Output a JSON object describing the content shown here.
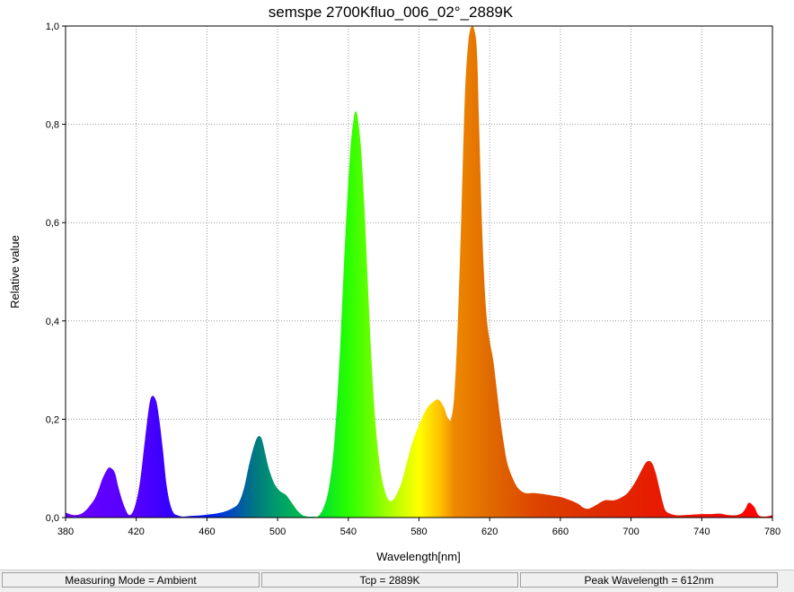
{
  "chart_data": {
    "type": "area",
    "title": "semspe 2700Kfluo_006_02°_2889K",
    "xlabel": "Wavelength[nm]",
    "ylabel": "Relative value",
    "xlim": [
      380,
      780
    ],
    "ylim": [
      0,
      1.0
    ],
    "xticks": [
      380,
      420,
      460,
      500,
      540,
      580,
      620,
      660,
      700,
      740,
      780
    ],
    "xtick_labels": [
      "380",
      "420",
      "460",
      "500",
      "540",
      "580",
      "620",
      "660",
      "700",
      "740",
      "780"
    ],
    "yticks": [
      0,
      0.2,
      0.4,
      0.6,
      0.8,
      1.0
    ],
    "ytick_labels": [
      "0,0",
      "0,2",
      "0,4",
      "0,6",
      "0,8",
      "1,0"
    ],
    "grid": true,
    "fill": "wavelength-colored spectrum",
    "series": [
      {
        "x": [
          380,
          385,
          390,
          395,
          398,
          401,
          404,
          406,
          408,
          410,
          413,
          416,
          419,
          422,
          425,
          428,
          431,
          433,
          435,
          437,
          439,
          441,
          443,
          446,
          450,
          455,
          460,
          465,
          470,
          475,
          478,
          481,
          484,
          487,
          489,
          491,
          493,
          495,
          498,
          501,
          503,
          505,
          508,
          511,
          514,
          517,
          520,
          523,
          526,
          529,
          532,
          535,
          538,
          541,
          543,
          544,
          545,
          547,
          549,
          551,
          553,
          555,
          557,
          559,
          561,
          563,
          565,
          567,
          570,
          573,
          576,
          579,
          582,
          585,
          588,
          591,
          594,
          596,
          598,
          600,
          602,
          604,
          606,
          608,
          610,
          612,
          613,
          614,
          616,
          618,
          620,
          622,
          624,
          626,
          628,
          630,
          633,
          636,
          640,
          645,
          650,
          655,
          660,
          665,
          670,
          673,
          676,
          680,
          685,
          690,
          694,
          698,
          702,
          705,
          708,
          710,
          712,
          714,
          716,
          718,
          720,
          725,
          730,
          740,
          745,
          750,
          755,
          760,
          763,
          765,
          766,
          767,
          768,
          770,
          772,
          775,
          778,
          780
        ],
        "y": [
          0.01,
          0.005,
          0.01,
          0.03,
          0.05,
          0.08,
          0.1,
          0.1,
          0.09,
          0.06,
          0.025,
          0.005,
          0.02,
          0.07,
          0.16,
          0.24,
          0.24,
          0.2,
          0.14,
          0.07,
          0.03,
          0.01,
          0.005,
          0.002,
          0.003,
          0.004,
          0.006,
          0.008,
          0.012,
          0.02,
          0.03,
          0.06,
          0.11,
          0.15,
          0.165,
          0.16,
          0.13,
          0.1,
          0.07,
          0.055,
          0.05,
          0.045,
          0.03,
          0.015,
          0.005,
          0.002,
          0.002,
          0.003,
          0.02,
          0.06,
          0.15,
          0.32,
          0.55,
          0.74,
          0.81,
          0.825,
          0.82,
          0.76,
          0.64,
          0.48,
          0.33,
          0.21,
          0.13,
          0.08,
          0.05,
          0.035,
          0.035,
          0.045,
          0.07,
          0.11,
          0.15,
          0.18,
          0.205,
          0.225,
          0.235,
          0.24,
          0.225,
          0.205,
          0.2,
          0.25,
          0.4,
          0.62,
          0.86,
          0.97,
          1.0,
          0.98,
          0.93,
          0.8,
          0.56,
          0.42,
          0.36,
          0.32,
          0.26,
          0.2,
          0.15,
          0.11,
          0.08,
          0.06,
          0.05,
          0.05,
          0.048,
          0.045,
          0.042,
          0.036,
          0.028,
          0.02,
          0.018,
          0.025,
          0.035,
          0.035,
          0.04,
          0.05,
          0.07,
          0.09,
          0.11,
          0.115,
          0.11,
          0.09,
          0.06,
          0.03,
          0.012,
          0.005,
          0.005,
          0.007,
          0.007,
          0.008,
          0.005,
          0.005,
          0.01,
          0.02,
          0.028,
          0.03,
          0.028,
          0.02,
          0.005,
          0.002,
          0.003,
          0.005
        ]
      }
    ]
  },
  "status_bar": {
    "measuring_mode": "Measuring Mode = Ambient",
    "tcp": "Tcp = 2889K",
    "peak_wavelength": "Peak Wavelength = 612nm"
  }
}
